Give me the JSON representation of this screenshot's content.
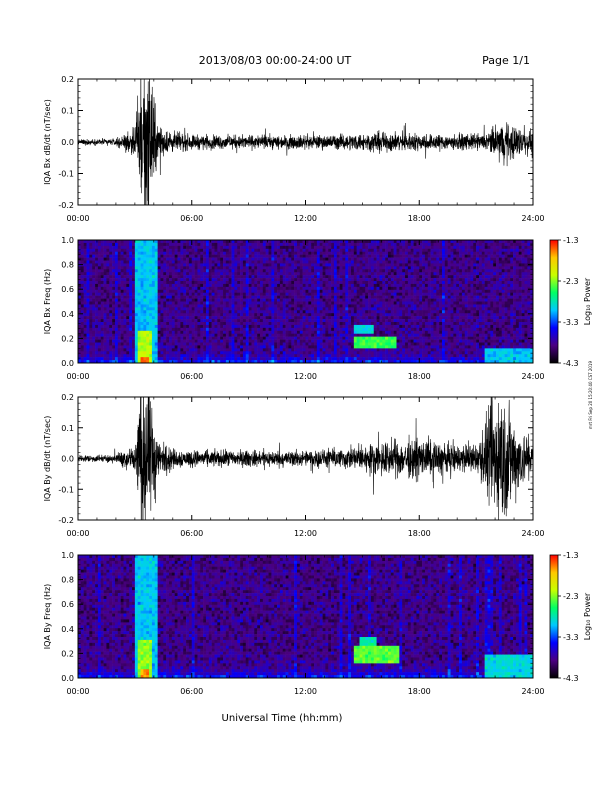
{
  "header": {
    "title": "2013/08/03  00:00-24:00 UT",
    "page": "Page 1/1"
  },
  "footer_xlabel": "Universal Time (hh:mm)",
  "side_note": "mrt Fri Sep 20 15:20:40 CST 2019",
  "colorbar": {
    "label": "Log₁₀ Power",
    "ticks": [
      "-1.3",
      "-2.3",
      "-3.3",
      "-4.3"
    ],
    "stops": [
      "#000000",
      "#4b0082",
      "#0000ff",
      "#00c8ff",
      "#00ff64",
      "#c8ff00",
      "#ffc800",
      "#ff0000"
    ]
  },
  "chart_data": [
    {
      "type": "line",
      "ylabel": "IQA Bx dB/dt (nT/sec)",
      "ylim": [
        -0.2,
        0.2
      ],
      "yticks": [
        "0.2",
        "0.1",
        "0.0",
        "-0.1",
        "-0.2"
      ],
      "xlim": [
        "00:00",
        "24:00"
      ],
      "xticks": [
        "00:00",
        "06:00",
        "12:00",
        "18:00",
        "24:00"
      ],
      "color": "#000000",
      "envelope": {
        "x_hours": [
          0,
          2,
          3.0,
          3.3,
          3.6,
          3.9,
          4.2,
          5,
          6,
          8,
          10,
          12,
          14,
          16,
          18,
          20,
          21.5,
          22.3,
          23,
          24
        ],
        "amplitude": [
          0.008,
          0.01,
          0.04,
          0.23,
          0.23,
          0.2,
          0.05,
          0.03,
          0.022,
          0.02,
          0.02,
          0.02,
          0.022,
          0.03,
          0.025,
          0.022,
          0.025,
          0.06,
          0.05,
          0.03
        ]
      }
    },
    {
      "type": "heatmap",
      "ylabel": "IQA Bx Freq (Hz)",
      "ylim": [
        0.0,
        1.0
      ],
      "yticks": [
        "1.0",
        "0.8",
        "0.6",
        "0.4",
        "0.2",
        "0.0"
      ],
      "xlim": [
        "00:00",
        "24:00"
      ],
      "xticks": [
        "00:00",
        "06:00",
        "12:00",
        "18:00",
        "24:00"
      ],
      "zlim": [
        -4.3,
        -1.3
      ],
      "features": [
        {
          "x_range": [
            3.0,
            4.2
          ],
          "f_range": [
            0.0,
            1.0
          ],
          "log_power": -3.0
        },
        {
          "x_range": [
            3.2,
            3.9
          ],
          "f_range": [
            0.0,
            0.25
          ],
          "log_power": -2.2
        },
        {
          "x_range": [
            3.3,
            3.8
          ],
          "f_range": [
            0.0,
            0.05
          ],
          "log_power": -1.5
        },
        {
          "x_range": [
            14.5,
            16.8
          ],
          "f_range": [
            0.12,
            0.22
          ],
          "log_power": -2.5
        },
        {
          "x_range": [
            14.6,
            15.6
          ],
          "f_range": [
            0.25,
            0.32
          ],
          "log_power": -2.9
        },
        {
          "x_range": [
            21.5,
            24.0
          ],
          "f_range": [
            0.0,
            0.12
          ],
          "log_power": -3.0
        }
      ]
    },
    {
      "type": "line",
      "ylabel": "IQA By dB/dt (nT/sec)",
      "ylim": [
        -0.2,
        0.2
      ],
      "yticks": [
        "0.2",
        "0.1",
        "0.0",
        "-0.1",
        "-0.2"
      ],
      "xlim": [
        "00:00",
        "24:00"
      ],
      "xticks": [
        "00:00",
        "06:00",
        "12:00",
        "18:00",
        "24:00"
      ],
      "color": "#000000",
      "envelope": {
        "x_hours": [
          0,
          2,
          3.0,
          3.3,
          3.6,
          3.9,
          4.2,
          5,
          6,
          8,
          10,
          12,
          14,
          16,
          18,
          19,
          21,
          22.2,
          22.6,
          23,
          24
        ],
        "amplitude": [
          0.01,
          0.012,
          0.05,
          0.23,
          0.23,
          0.18,
          0.06,
          0.03,
          0.025,
          0.025,
          0.025,
          0.025,
          0.03,
          0.05,
          0.06,
          0.05,
          0.04,
          0.22,
          0.2,
          0.12,
          0.05
        ]
      }
    },
    {
      "type": "heatmap",
      "ylabel": "IQA By Freq (Hz)",
      "ylim": [
        0.0,
        1.0
      ],
      "yticks": [
        "1.0",
        "0.8",
        "0.6",
        "0.4",
        "0.2",
        "0.0"
      ],
      "xlim": [
        "00:00",
        "24:00"
      ],
      "xticks": [
        "00:00",
        "06:00",
        "12:00",
        "18:00",
        "24:00"
      ],
      "zlim": [
        -4.3,
        -1.3
      ],
      "features": [
        {
          "x_range": [
            3.0,
            4.2
          ],
          "f_range": [
            0.0,
            1.0
          ],
          "log_power": -3.0
        },
        {
          "x_range": [
            3.2,
            3.9
          ],
          "f_range": [
            0.0,
            0.3
          ],
          "log_power": -2.3
        },
        {
          "x_range": [
            3.3,
            3.8
          ],
          "f_range": [
            0.0,
            0.06
          ],
          "log_power": -1.6
        },
        {
          "x_range": [
            14.6,
            17.0
          ],
          "f_range": [
            0.12,
            0.25
          ],
          "log_power": -2.4
        },
        {
          "x_range": [
            14.8,
            15.8
          ],
          "f_range": [
            0.27,
            0.33
          ],
          "log_power": -2.8
        },
        {
          "x_range": [
            21.5,
            24.0
          ],
          "f_range": [
            0.0,
            0.18
          ],
          "log_power": -2.9
        }
      ]
    }
  ]
}
